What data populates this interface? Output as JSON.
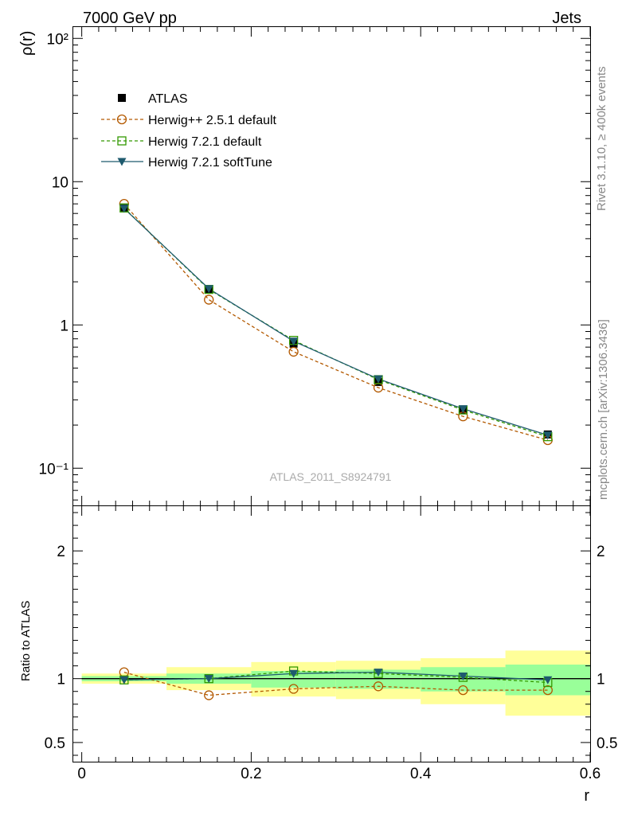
{
  "header": {
    "left": "7000 GeV pp",
    "right": "Jets"
  },
  "side_labels": {
    "rivet": "Rivet 3.1.10, ≥ 400k events",
    "mcplots": "mcplots.cern.ch [arXiv:1306.3436]"
  },
  "watermark": "ATLAS_2011_S8924791",
  "colors": {
    "atlas": "#000000",
    "herwigpp": "#b35900",
    "herwig721": "#339900",
    "softtune": "#1e5a6e",
    "band_inner": "#99ff99",
    "band_outer": "#ffff99"
  },
  "chart_data": [
    {
      "type": "line",
      "panel": "main",
      "xlabel": "",
      "ylabel": "ρ(r)",
      "yscale": "log",
      "xlim": [
        -0.01,
        0.6
      ],
      "ylim": [
        0.055,
        120
      ],
      "ytick_labels": [
        "10⁻¹",
        "1",
        "10",
        "10²"
      ],
      "x": [
        0.05,
        0.15,
        0.25,
        0.35,
        0.45,
        0.55
      ],
      "series": [
        {
          "key": "atlas",
          "name": "ATLAS",
          "values": [
            6.6,
            1.77,
            0.74,
            0.4,
            0.255,
            0.172
          ]
        },
        {
          "key": "herwigpp",
          "name": "Herwig++ 2.5.1 default",
          "values": [
            7.0,
            1.5,
            0.65,
            0.365,
            0.23,
            0.157
          ]
        },
        {
          "key": "herwig721",
          "name": "Herwig 7.2.1 default",
          "values": [
            6.55,
            1.77,
            0.78,
            0.415,
            0.255,
            0.166
          ]
        },
        {
          "key": "softtune",
          "name": "Herwig 7.2.1 softTune",
          "values": [
            6.5,
            1.79,
            0.77,
            0.42,
            0.26,
            0.17
          ]
        }
      ]
    },
    {
      "type": "line",
      "panel": "ratio",
      "xlabel": "r",
      "ylabel": "Ratio to ATLAS",
      "xlim": [
        -0.01,
        0.6
      ],
      "ylim": [
        0.35,
        2.35
      ],
      "xtick_labels": [
        "0",
        "0.2",
        "0.4",
        "0.6"
      ],
      "ytick_labels": [
        "0.5",
        "1",
        "2"
      ],
      "x": [
        0.05,
        0.15,
        0.25,
        0.35,
        0.45,
        0.55
      ],
      "bands": {
        "bins": [
          0.0,
          0.1,
          0.2,
          0.3,
          0.4,
          0.5,
          0.6
        ],
        "outer_lo": [
          0.96,
          0.91,
          0.86,
          0.84,
          0.8,
          0.71
        ],
        "outer_hi": [
          1.04,
          1.09,
          1.13,
          1.14,
          1.16,
          1.22
        ],
        "inner_lo": [
          0.98,
          0.96,
          0.93,
          0.92,
          0.9,
          0.87
        ],
        "inner_hi": [
          1.02,
          1.04,
          1.06,
          1.07,
          1.09,
          1.11
        ]
      },
      "series": [
        {
          "key": "herwigpp",
          "name": "Herwig++ 2.5.1 default",
          "values": [
            1.05,
            0.87,
            0.92,
            0.94,
            0.91,
            0.91
          ]
        },
        {
          "key": "herwig721",
          "name": "Herwig 7.2.1 default",
          "values": [
            0.99,
            1.0,
            1.06,
            1.04,
            1.01,
            0.97
          ]
        },
        {
          "key": "softtune",
          "name": "Herwig 7.2.1 softTune",
          "values": [
            0.99,
            1.0,
            1.04,
            1.05,
            1.02,
            0.99
          ]
        }
      ]
    }
  ]
}
